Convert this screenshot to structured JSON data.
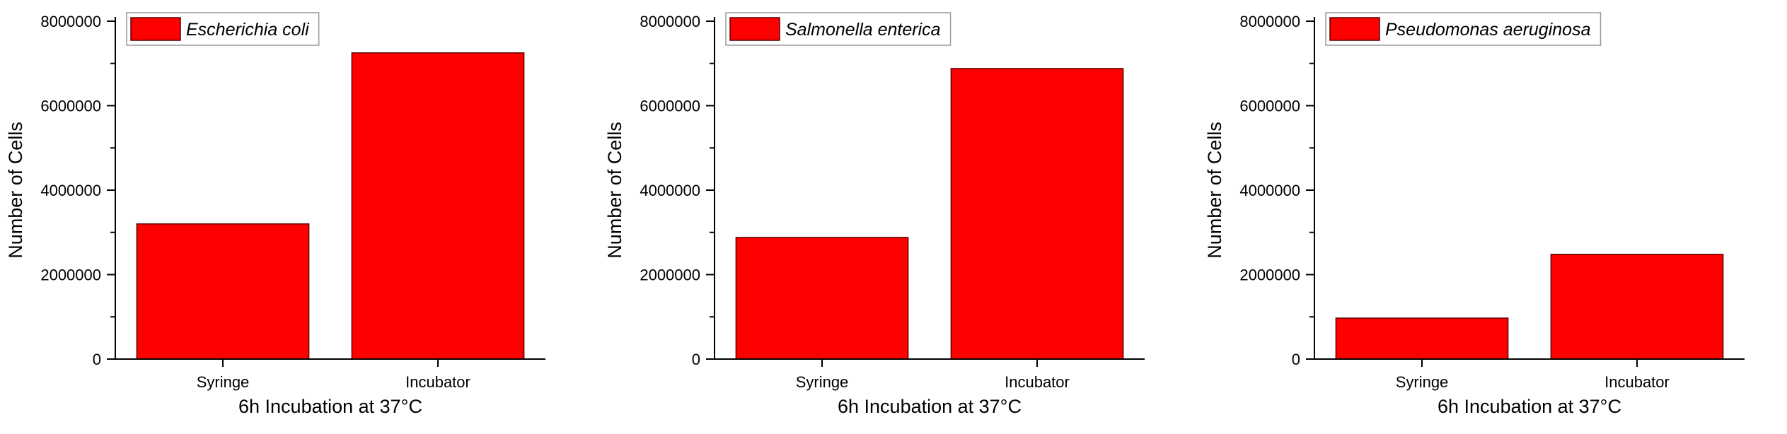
{
  "colors": {
    "bar_fill": "#ff0000",
    "bar_stroke": "#5a0000",
    "axis": "#000000",
    "legend_border": "#9a9a9a"
  },
  "chart_data": [
    {
      "type": "bar",
      "legend": "Escherichia coli",
      "categories": [
        "Syringe",
        "Incubator"
      ],
      "values": [
        3200000,
        7250000
      ],
      "xlabel": "6h Incubation at 37°C",
      "ylabel": "Number of Cells",
      "ylim": [
        0,
        8000000
      ],
      "yticks": [
        "0",
        "2000000",
        "4000000",
        "6000000",
        "8000000"
      ],
      "grid": false,
      "legend_position": "top-left"
    },
    {
      "type": "bar",
      "legend": "Salmonella enterica",
      "categories": [
        "Syringe",
        "Incubator"
      ],
      "values": [
        2880000,
        6880000
      ],
      "xlabel": "6h Incubation at 37°C",
      "ylabel": "Number of Cells",
      "ylim": [
        0,
        8000000
      ],
      "yticks": [
        "0",
        "2000000",
        "4000000",
        "6000000",
        "8000000"
      ],
      "grid": false,
      "legend_position": "top-left"
    },
    {
      "type": "bar",
      "legend": "Pseudomonas aeruginosa",
      "categories": [
        "Syringe",
        "Incubator"
      ],
      "values": [
        970000,
        2480000
      ],
      "xlabel": "6h Incubation at 37°C",
      "ylabel": "Number of Cells",
      "ylim": [
        0,
        8000000
      ],
      "yticks": [
        "0",
        "2000000",
        "4000000",
        "6000000",
        "8000000"
      ],
      "grid": false,
      "legend_position": "top-left"
    }
  ]
}
